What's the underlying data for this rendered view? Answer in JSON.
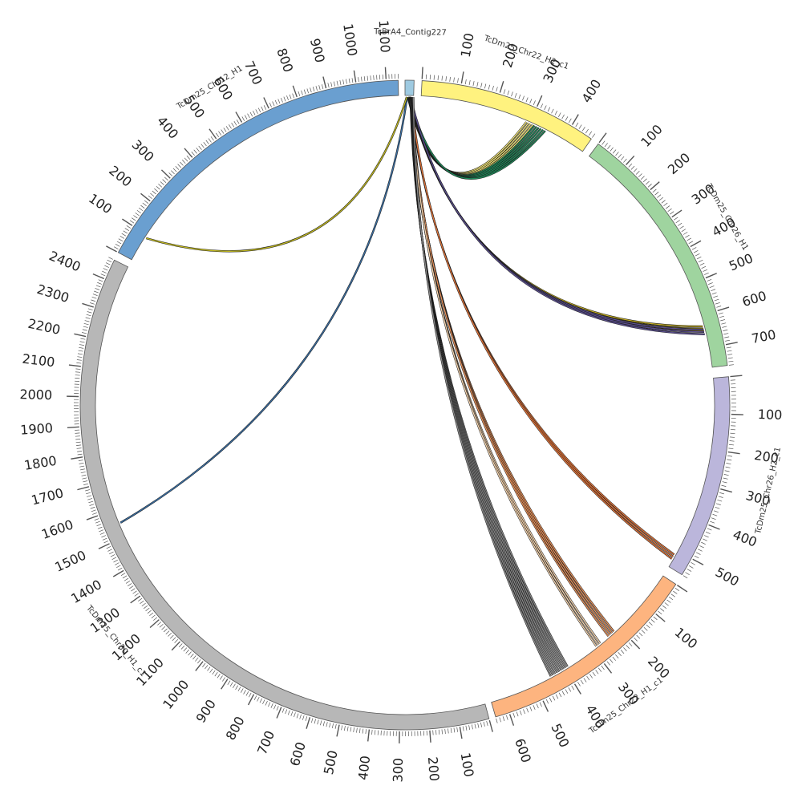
{
  "chart_data": {
    "type": "circos",
    "title": "",
    "tick_step_major": 100,
    "tick_step_minor": 10,
    "segments": [
      {
        "name": "TcBrA4_Contig227",
        "length": 20,
        "color": "#9ecae1",
        "start_deg": 0.0,
        "end_deg": 1.6,
        "show_ticks": false
      },
      {
        "name": "TcDm25_Chr22_H2_c1",
        "length": 460,
        "color": "#fff27f",
        "start_deg": 3.0,
        "end_deg": 35.0,
        "show_ticks": true
      },
      {
        "name": "TcDm25_Chr26_H1",
        "length": 760,
        "color": "#9fd49f",
        "start_deg": 36.5,
        "end_deg": 83.0,
        "show_ticks": true
      },
      {
        "name": "TcDm25_Chr26_H2_c1",
        "length": 550,
        "color": "#bbb6db",
        "start_deg": 85.0,
        "end_deg": 121.5,
        "show_ticks": true
      },
      {
        "name": "TcDm25_Chr22_H1_c1",
        "length": 640,
        "color": "#fdb47f",
        "start_deg": 123.5,
        "end_deg": 163.8,
        "show_ticks": true
      },
      {
        "name": "TcDm25_Chr30_H1_c1",
        "length": 2470,
        "color": "#b7b7b7",
        "start_deg": 165.0,
        "end_deg": 296.5,
        "show_ticks": true
      },
      {
        "name": "TcDm25_Chr12_H1",
        "length": 1140,
        "color": "#6a9fd0",
        "start_deg": 298.0,
        "end_deg": 358.8,
        "show_ticks": true
      }
    ],
    "links": [
      {
        "source": {
          "seg": 0,
          "pos": 8
        },
        "target": {
          "seg": 1,
          "pos": 300
        },
        "color": "#f6e979",
        "copies": 4
      },
      {
        "source": {
          "seg": 0,
          "pos": 9
        },
        "target": {
          "seg": 1,
          "pos": 330
        },
        "color": "#1f8a5a",
        "copies": 6
      },
      {
        "source": {
          "seg": 0,
          "pos": 10
        },
        "target": {
          "seg": 2,
          "pos": 640
        },
        "color": "#c8b021",
        "copies": 3
      },
      {
        "source": {
          "seg": 0,
          "pos": 12
        },
        "target": {
          "seg": 2,
          "pos": 650
        },
        "color": "#5a4e8e",
        "copies": 3
      },
      {
        "source": {
          "seg": 0,
          "pos": 13
        },
        "target": {
          "seg": 3,
          "pos": 520
        },
        "color": "#e6763a",
        "copies": 3
      },
      {
        "source": {
          "seg": 0,
          "pos": 14
        },
        "target": {
          "seg": 4,
          "pos": 230
        },
        "color": "#e8915a",
        "copies": 4
      },
      {
        "source": {
          "seg": 0,
          "pos": 15
        },
        "target": {
          "seg": 4,
          "pos": 280
        },
        "color": "#f7d6b0",
        "copies": 3
      },
      {
        "source": {
          "seg": 0,
          "pos": 16
        },
        "target": {
          "seg": 4,
          "pos": 420
        },
        "color": "#8a8a8a",
        "copies": 9
      },
      {
        "source": {
          "seg": 0,
          "pos": 5
        },
        "target": {
          "seg": 5,
          "pos": 1550
        },
        "color": "#3b6fa3",
        "copies": 1
      },
      {
        "source": {
          "seg": 0,
          "pos": 4
        },
        "target": {
          "seg": 6,
          "pos": 90
        },
        "color": "#c0b820",
        "copies": 1
      }
    ]
  }
}
